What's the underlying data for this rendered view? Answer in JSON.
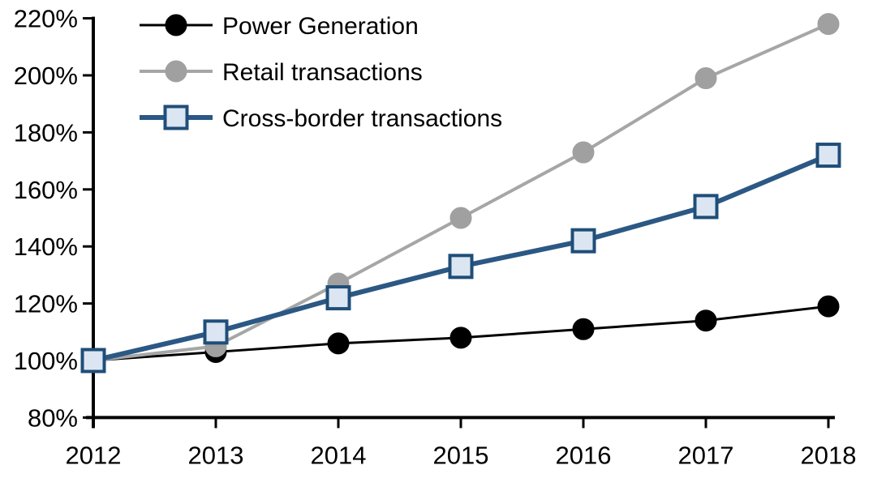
{
  "chart_data": {
    "type": "line",
    "title": "",
    "xlabel": "",
    "ylabel": "",
    "x": [
      2012,
      2013,
      2014,
      2015,
      2016,
      2017,
      2018
    ],
    "x_tick_labels": [
      "2012",
      "2013",
      "2014",
      "2015",
      "2016",
      "2017",
      "2018"
    ],
    "y_tick_values": [
      220,
      200,
      180,
      160,
      140,
      120,
      100,
      80
    ],
    "y_tick_labels": [
      "220%",
      "200%",
      "180%",
      "160%",
      "140%",
      "120%",
      "100%",
      "80%"
    ],
    "ylim": [
      80,
      220
    ],
    "grid": false,
    "legend_position": "top-left",
    "background_color": "#ffffff",
    "axis_color": "#000000",
    "series": [
      {
        "name": "Power Generation",
        "values": [
          100,
          103,
          106,
          108,
          111,
          114,
          119
        ],
        "unit": "%",
        "line_color": "#000000",
        "line_width": 3,
        "marker": "circle",
        "marker_fill": "#000000",
        "marker_stroke": "#000000"
      },
      {
        "name": "Retail transactions",
        "values": [
          100,
          105,
          127,
          150,
          173,
          199,
          218
        ],
        "unit": "%",
        "line_color": "#a6a6a6",
        "line_width": 4,
        "marker": "circle",
        "marker_fill": "#a0a0a0",
        "marker_stroke": "#a0a0a0"
      },
      {
        "name": "Cross-border transactions",
        "values": [
          100,
          110,
          122,
          133,
          142,
          154,
          172
        ],
        "unit": "%",
        "line_color": "#2b5884",
        "line_width": 6,
        "marker": "square",
        "marker_fill": "#dce6f2",
        "marker_stroke": "#1f4e79"
      }
    ]
  }
}
